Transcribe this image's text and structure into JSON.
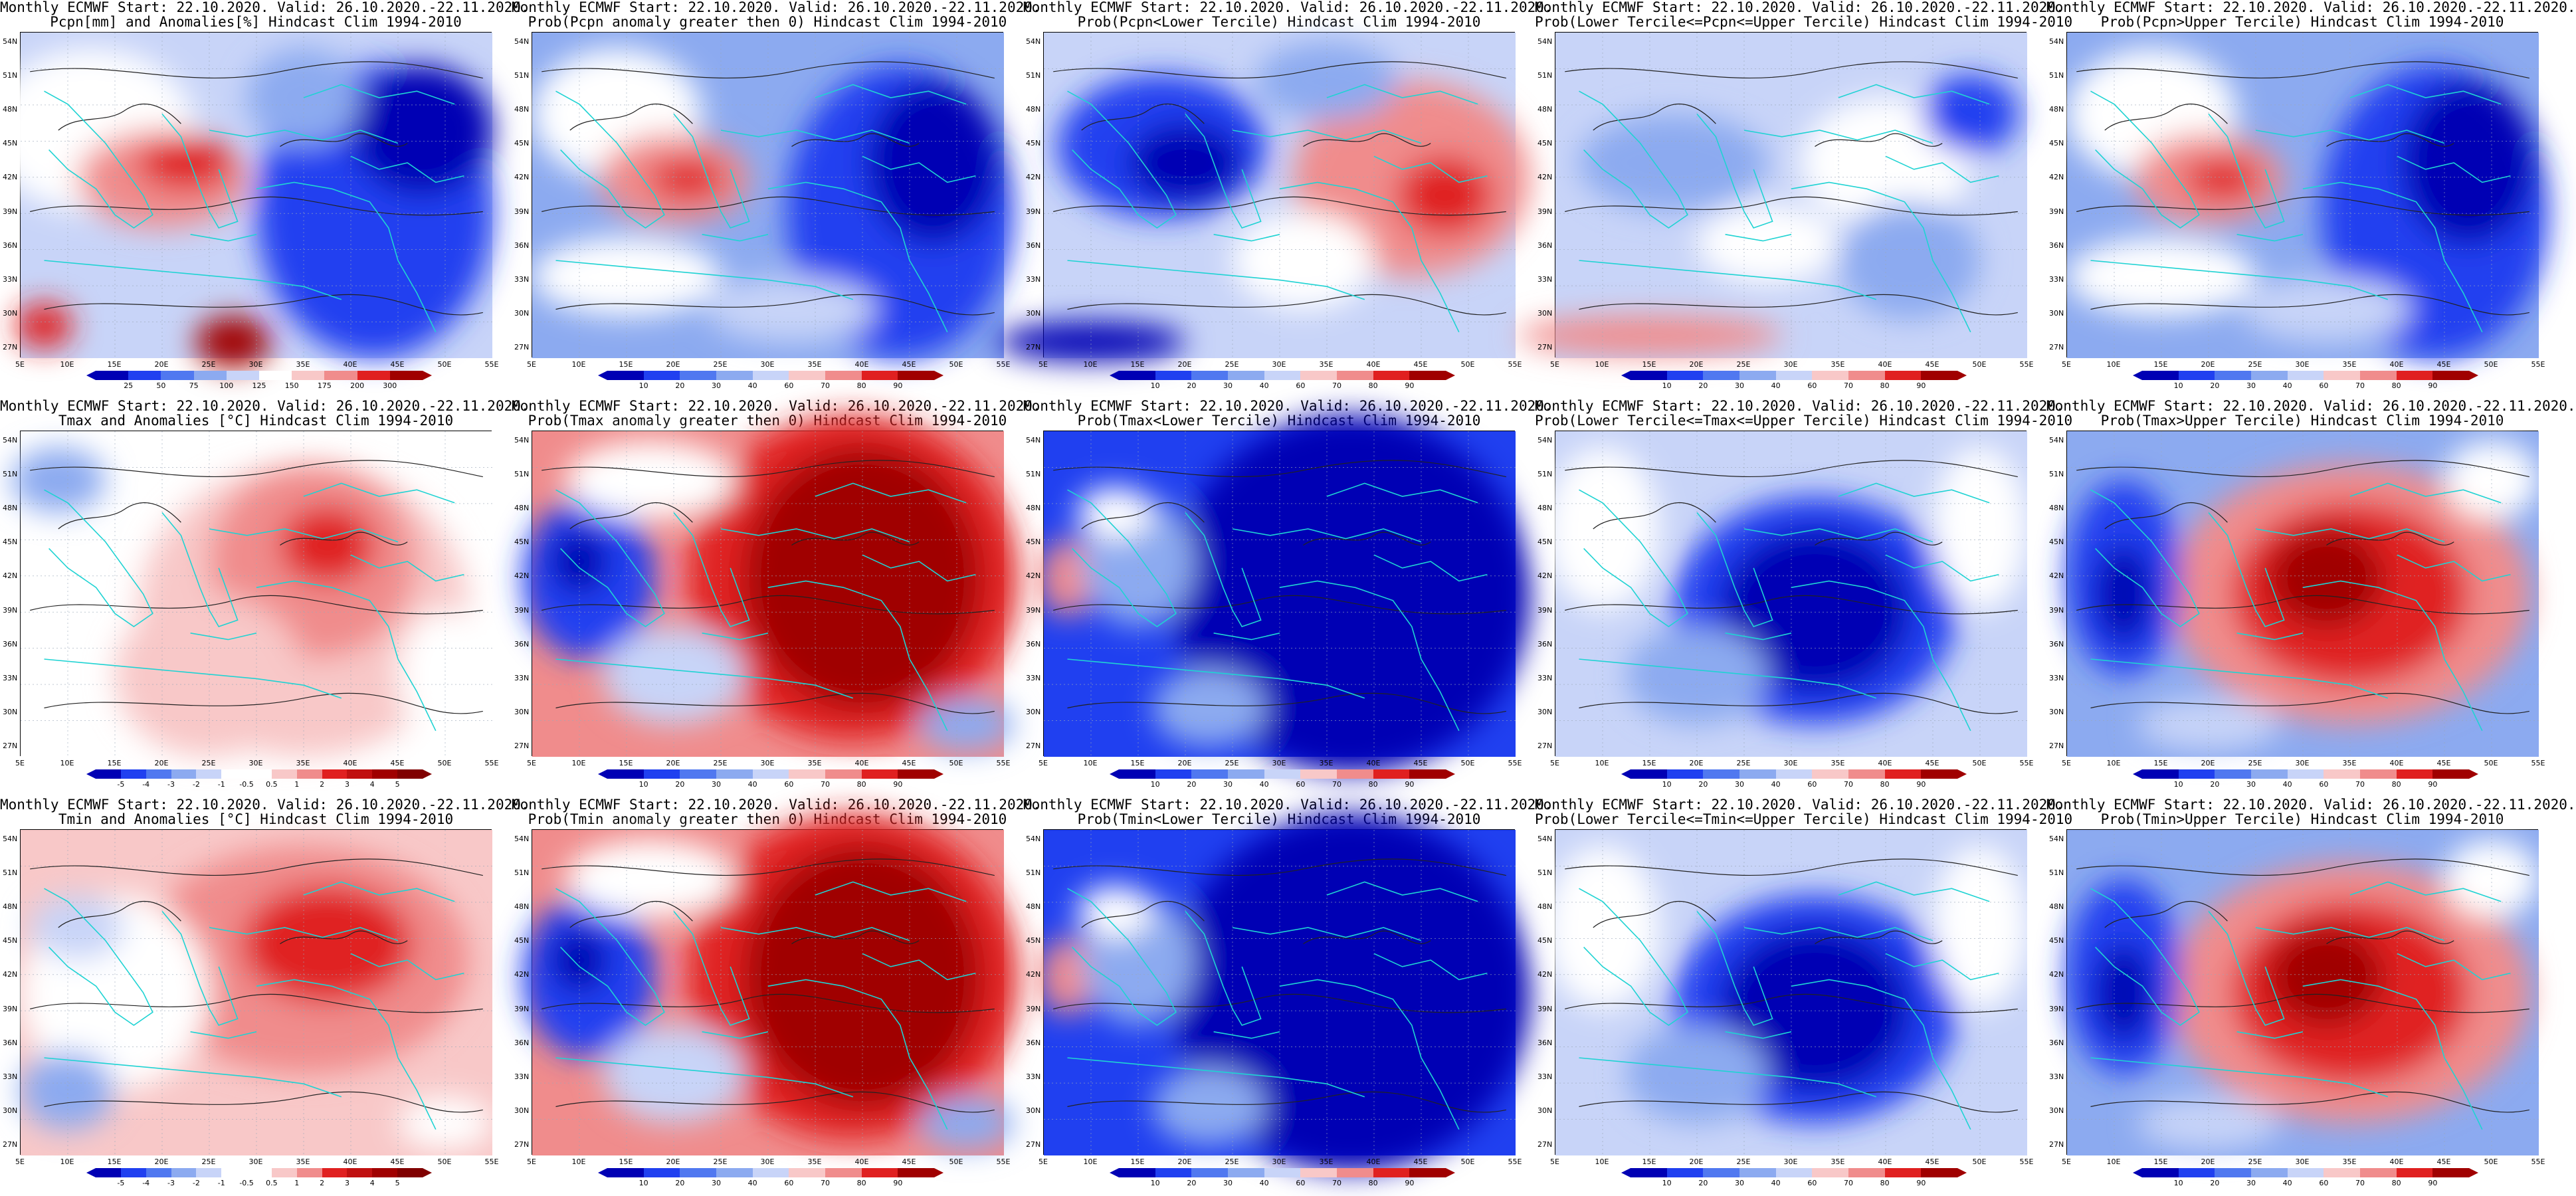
{
  "panels": [
    {
      "title1": "Monthly ECMWF Start: 22.10.2020. Valid: 26.10.2020.-22.11.2020.",
      "title2": "Pcpn[mm] and Anomalies[%] Hindcast Clim 1994-2010",
      "scheme": "pcpn_anom",
      "colorbar_labels": [
        "25",
        "50",
        "75",
        "100",
        "125",
        "150",
        "175",
        "200",
        "300"
      ]
    },
    {
      "title1": "Monthly ECMWF Start: 22.10.2020. Valid: 26.10.2020.-22.11.2020.",
      "title2": "Prob(Pcpn anomaly greater then 0) Hindcast Clim 1994-2010",
      "scheme": "prob_lowwet",
      "colorbar_labels": [
        "10",
        "20",
        "30",
        "40",
        "60",
        "70",
        "80",
        "90"
      ]
    },
    {
      "title1": "Monthly ECMWF Start: 22.10.2020. Valid: 26.10.2020.-22.11.2020.",
      "title2": "Prob(Pcpn<Lower Tercile) Hindcast Clim 1994-2010",
      "scheme": "prob_dryeast",
      "colorbar_labels": [
        "10",
        "20",
        "30",
        "40",
        "60",
        "70",
        "80",
        "90"
      ]
    },
    {
      "title1": "Monthly ECMWF Start: 22.10.2020. Valid: 26.10.2020.-22.11.2020.",
      "title2": "Prob(Lower Tercile<=Pcpn<=Upper Tercile) Hindcast Clim 1994-2010",
      "scheme": "prob_mixblue",
      "colorbar_labels": [
        "10",
        "20",
        "30",
        "40",
        "60",
        "70",
        "80",
        "90"
      ]
    },
    {
      "title1": "Monthly ECMWF Start: 22.10.2020. Valid: 26.10.2020.-22.11.2020.",
      "title2": "Prob(Pcpn>Upper Tercile) Hindcast Clim 1994-2010",
      "scheme": "prob_lowwet",
      "colorbar_labels": [
        "10",
        "20",
        "30",
        "40",
        "60",
        "70",
        "80",
        "90"
      ]
    },
    {
      "title1": "Monthly ECMWF Start: 22.10.2020. Valid: 26.10.2020.-22.11.2020.",
      "title2": "Tmax and Anomalies [°C] Hindcast Clim 1994-2010",
      "scheme": "temp_anom",
      "colorbar_labels": [
        "-5",
        "-4",
        "-3",
        "-2",
        "-1",
        "-0.5",
        "0.5",
        "1",
        "2",
        "3",
        "4",
        "5"
      ]
    },
    {
      "title1": "Monthly ECMWF Start: 22.10.2020. Valid: 26.10.2020.-22.11.2020.",
      "title2": "Prob(Tmax anomaly greater then 0) Hindcast Clim 1994-2010",
      "scheme": "prob_hoteast",
      "colorbar_labels": [
        "10",
        "20",
        "30",
        "40",
        "60",
        "70",
        "80",
        "90"
      ]
    },
    {
      "title1": "Monthly ECMWF Start: 22.10.2020. Valid: 26.10.2020.-22.11.2020.",
      "title2": "Prob(Tmax<Lower Tercile) Hindcast Clim 1994-2010",
      "scheme": "prob_coldall",
      "colorbar_labels": [
        "10",
        "20",
        "30",
        "40",
        "60",
        "70",
        "80",
        "90"
      ]
    },
    {
      "title1": "Monthly ECMWF Start: 22.10.2020. Valid: 26.10.2020.-22.11.2020.",
      "title2": "Prob(Lower Tercile<=Tmax<=Upper Tercile) Hindcast Clim 1994-2010",
      "scheme": "prob_bluecenter",
      "colorbar_labels": [
        "10",
        "20",
        "30",
        "40",
        "60",
        "70",
        "80",
        "90"
      ]
    },
    {
      "title1": "Monthly ECMWF Start: 22.10.2020. Valid: 26.10.2020.-22.11.2020.",
      "title2": "Prob(Tmax>Upper Tercile) Hindcast Clim 1994-2010",
      "scheme": "prob_redcenter",
      "colorbar_labels": [
        "10",
        "20",
        "30",
        "40",
        "60",
        "70",
        "80",
        "90"
      ]
    },
    {
      "title1": "Monthly ECMWF Start: 22.10.2020. Valid: 26.10.2020.-22.11.2020.",
      "title2": "Tmin and Anomalies [°C] Hindcast Clim 1994-2010",
      "scheme": "temp_anom2",
      "colorbar_labels": [
        "-5",
        "-4",
        "-3",
        "-2",
        "-1",
        "-0.5",
        "0.5",
        "1",
        "2",
        "3",
        "4",
        "5"
      ]
    },
    {
      "title1": "Monthly ECMWF Start: 22.10.2020. Valid: 26.10.2020.-22.11.2020.",
      "title2": "Prob(Tmin anomaly greater then 0) Hindcast Clim 1994-2010",
      "scheme": "prob_hoteast",
      "colorbar_labels": [
        "10",
        "20",
        "30",
        "40",
        "60",
        "70",
        "80",
        "90"
      ]
    },
    {
      "title1": "Monthly ECMWF Start: 22.10.2020. Valid: 26.10.2020.-22.11.2020.",
      "title2": "Prob(Tmin<Lower Tercile) Hindcast Clim 1994-2010",
      "scheme": "prob_coldall",
      "colorbar_labels": [
        "10",
        "20",
        "30",
        "40",
        "60",
        "70",
        "80",
        "90"
      ]
    },
    {
      "title1": "Monthly ECMWF Start: 22.10.2020. Valid: 26.10.2020.-22.11.2020.",
      "title2": "Prob(Lower Tercile<=Tmin<=Upper Tercile) Hindcast Clim 1994-2010",
      "scheme": "prob_bluecenter",
      "colorbar_labels": [
        "10",
        "20",
        "30",
        "40",
        "60",
        "70",
        "80",
        "90"
      ]
    },
    {
      "title1": "Monthly ECMWF Start: 22.10.2020. Valid: 26.10.2020.-22.11.2020.",
      "title2": "Prob(Tmin>Upper Tercile) Hindcast Clim 1994-2010",
      "scheme": "prob_redcenter",
      "colorbar_labels": [
        "10",
        "20",
        "30",
        "40",
        "60",
        "70",
        "80",
        "90"
      ]
    }
  ],
  "lat_labels": [
    "54N",
    "51N",
    "48N",
    "45N",
    "42N",
    "39N",
    "36N",
    "33N",
    "30N",
    "27N"
  ],
  "lon_labels": [
    "5E",
    "10E",
    "15E",
    "20E",
    "25E",
    "30E",
    "35E",
    "40E",
    "45E",
    "50E",
    "55E"
  ],
  "colors": {
    "coast": "#1fd3d3",
    "contour": "#222222",
    "blue_dark": "#0000b4",
    "blue_mid": "#2040f0",
    "blue_light": "#8caaf0",
    "blue_pale": "#c8d4f8",
    "red_pale": "#f8c8c8",
    "red_light": "#f08c8c",
    "red_mid": "#e02020",
    "red_dark": "#a00000"
  }
}
